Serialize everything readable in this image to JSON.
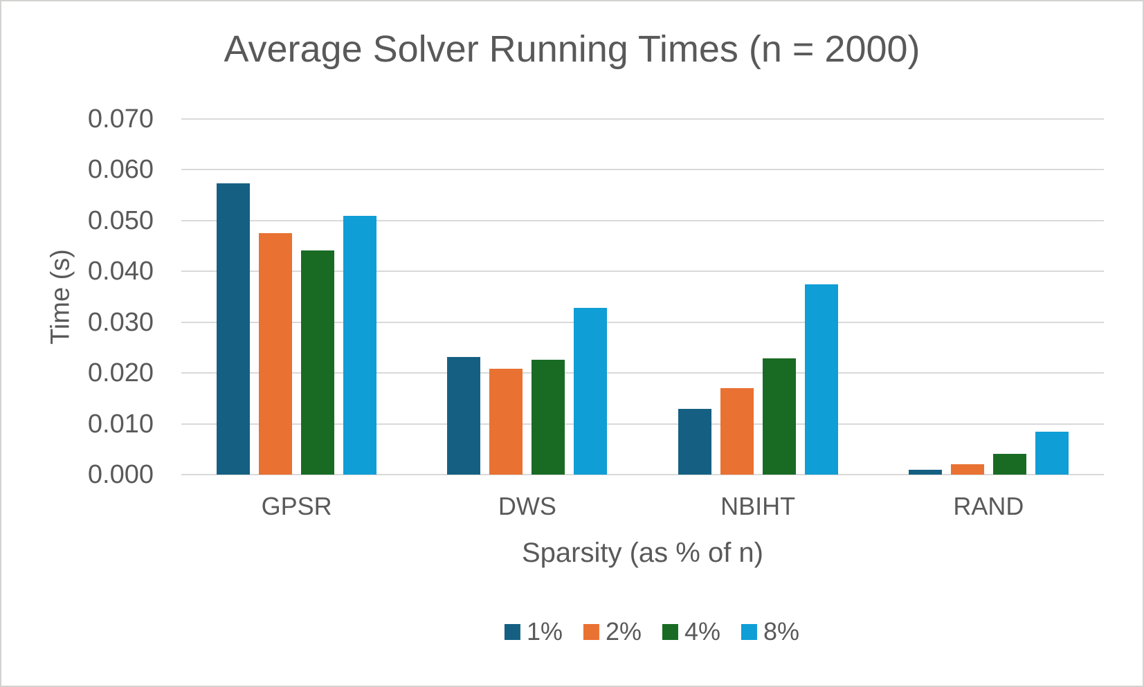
{
  "chart_data": {
    "type": "bar",
    "title": "Average Solver Running Times (n = 2000)",
    "xlabel": "Sparsity (as % of n)",
    "ylabel": "Time (s)",
    "categories": [
      "GPSR",
      "DWS",
      "NBIHT",
      "RAND"
    ],
    "series": [
      {
        "name": "1%",
        "color": "#156082",
        "values": [
          0.0573,
          0.0231,
          0.013,
          0.001
        ]
      },
      {
        "name": "2%",
        "color": "#E97132",
        "values": [
          0.0476,
          0.0209,
          0.017,
          0.0021
        ]
      },
      {
        "name": "4%",
        "color": "#196B24",
        "values": [
          0.0441,
          0.0226,
          0.0229,
          0.0041
        ]
      },
      {
        "name": "8%",
        "color": "#0F9ED5",
        "values": [
          0.051,
          0.0328,
          0.0375,
          0.0084
        ]
      }
    ],
    "ylim": [
      0,
      0.07
    ],
    "yticks": [
      "0.000",
      "0.010",
      "0.020",
      "0.030",
      "0.040",
      "0.050",
      "0.060",
      "0.070"
    ],
    "grid": true,
    "legend_position": "bottom",
    "colors": {
      "text": "#595959",
      "gridline": "#D9D9D9",
      "background": "#FFFFFF",
      "border": "#D4D2D0"
    }
  }
}
